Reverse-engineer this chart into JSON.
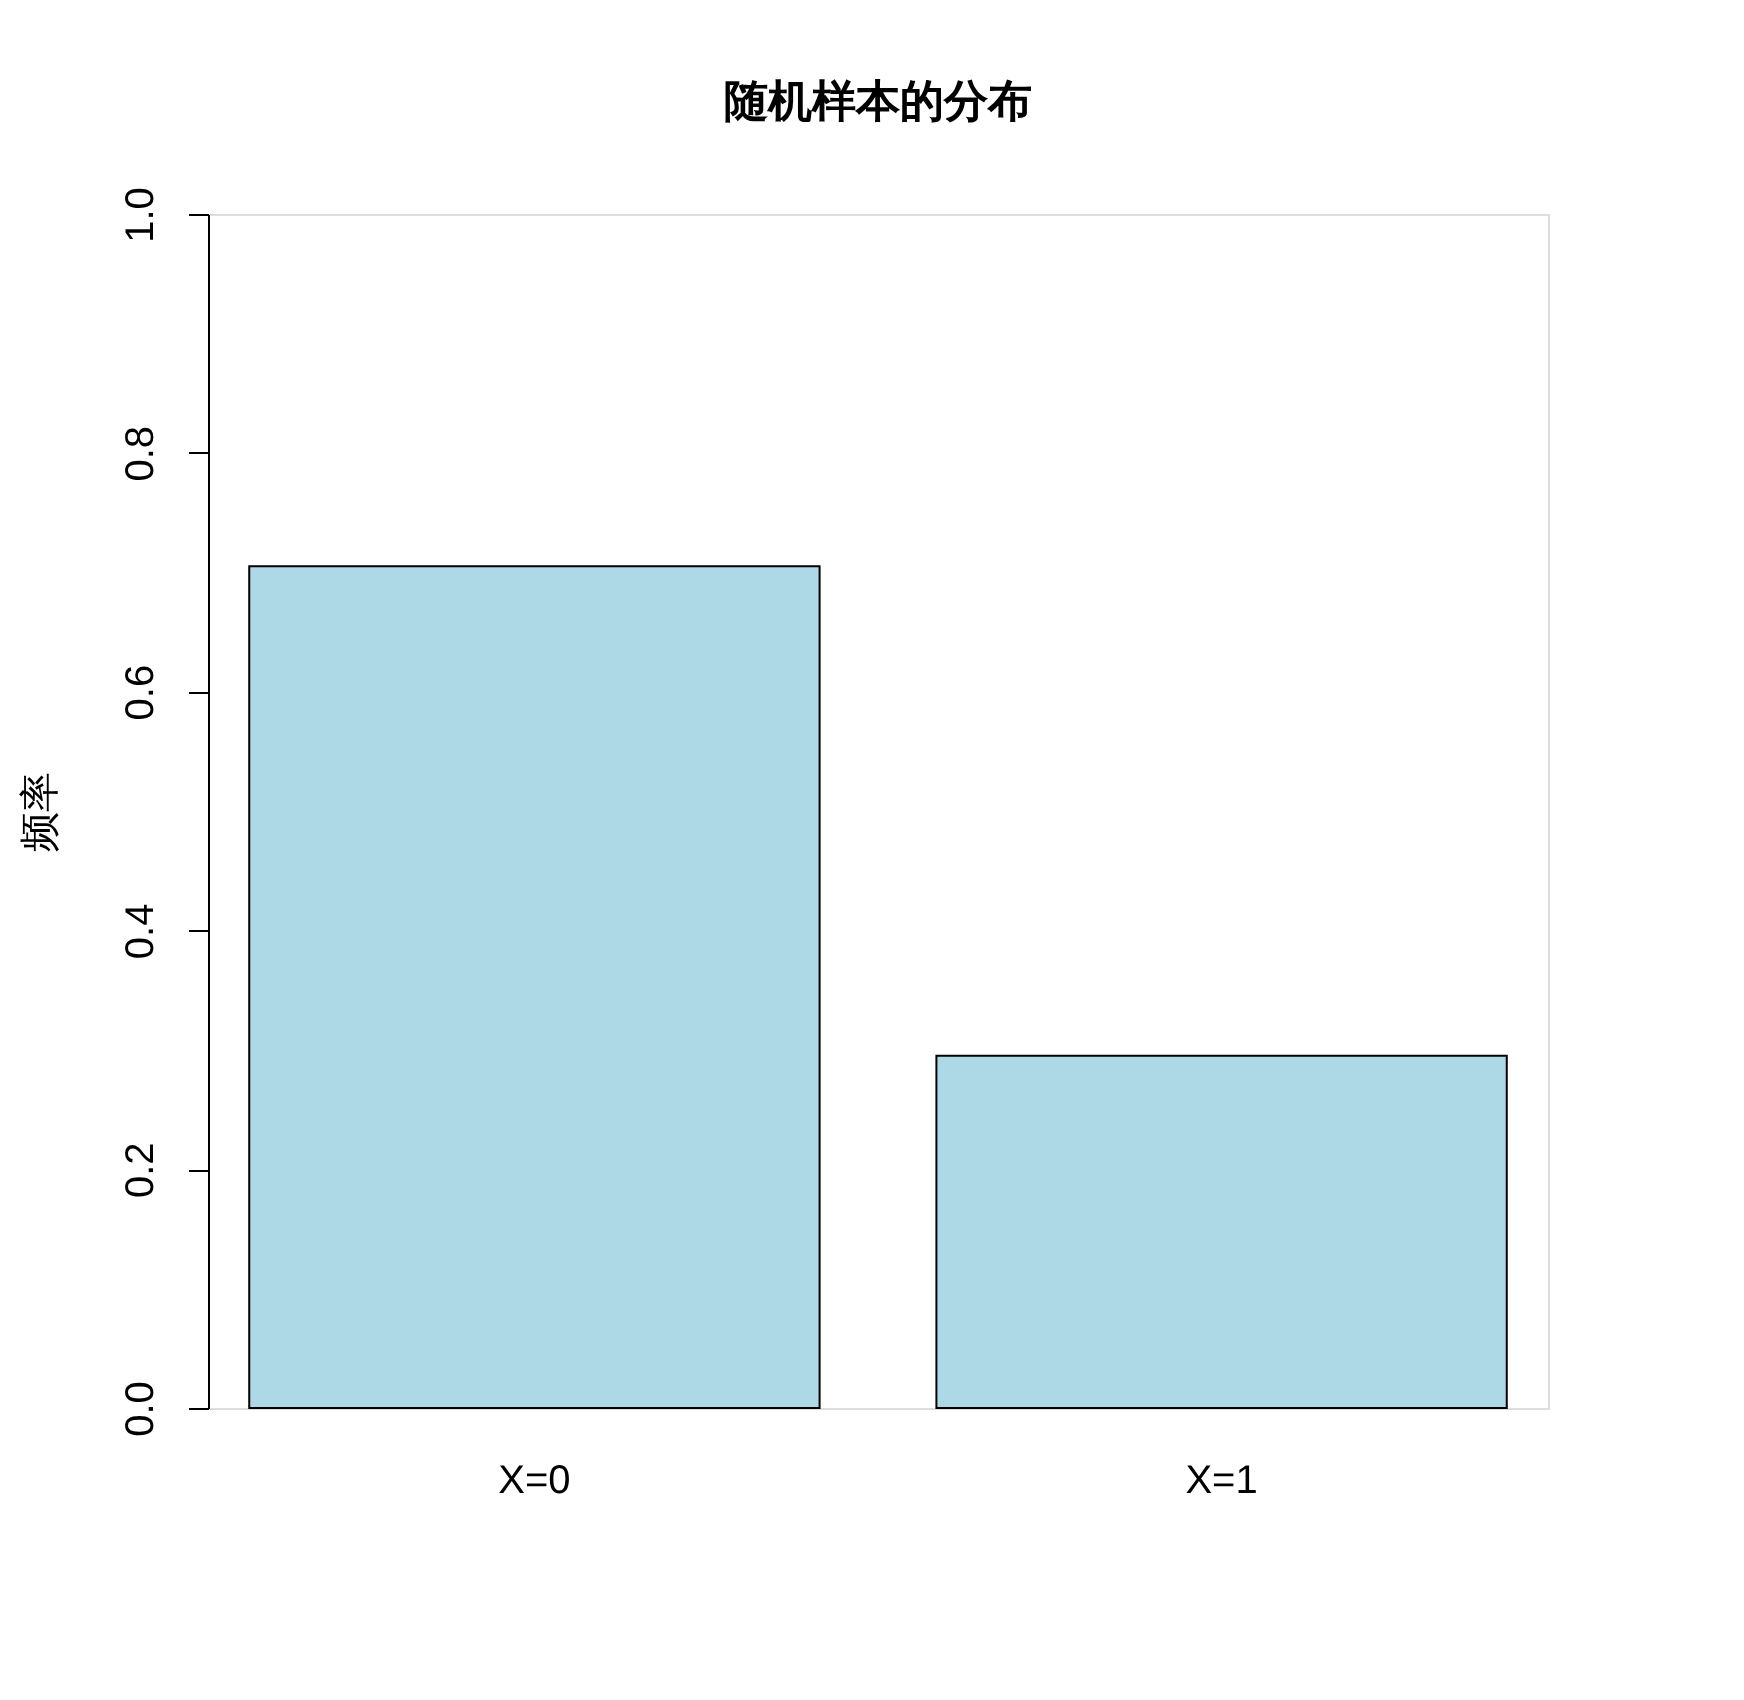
{
  "chart_data": {
    "type": "bar",
    "title": "随机样本的分布",
    "ylabel": "频率",
    "categories": [
      "X=0",
      "X=1"
    ],
    "values": [
      0.705,
      0.295
    ],
    "color": "#add8e6",
    "ylim": [
      0,
      1.0
    ],
    "yticks": [
      {
        "value": 0,
        "label": "0.0"
      },
      {
        "value": 0.2,
        "label": "0.2"
      },
      {
        "value": 0.4,
        "label": "0.4"
      },
      {
        "value": 0.6,
        "label": "0.6"
      },
      {
        "value": 0.8,
        "label": "0.8"
      },
      {
        "value": 1.0,
        "label": "1.0"
      }
    ]
  }
}
